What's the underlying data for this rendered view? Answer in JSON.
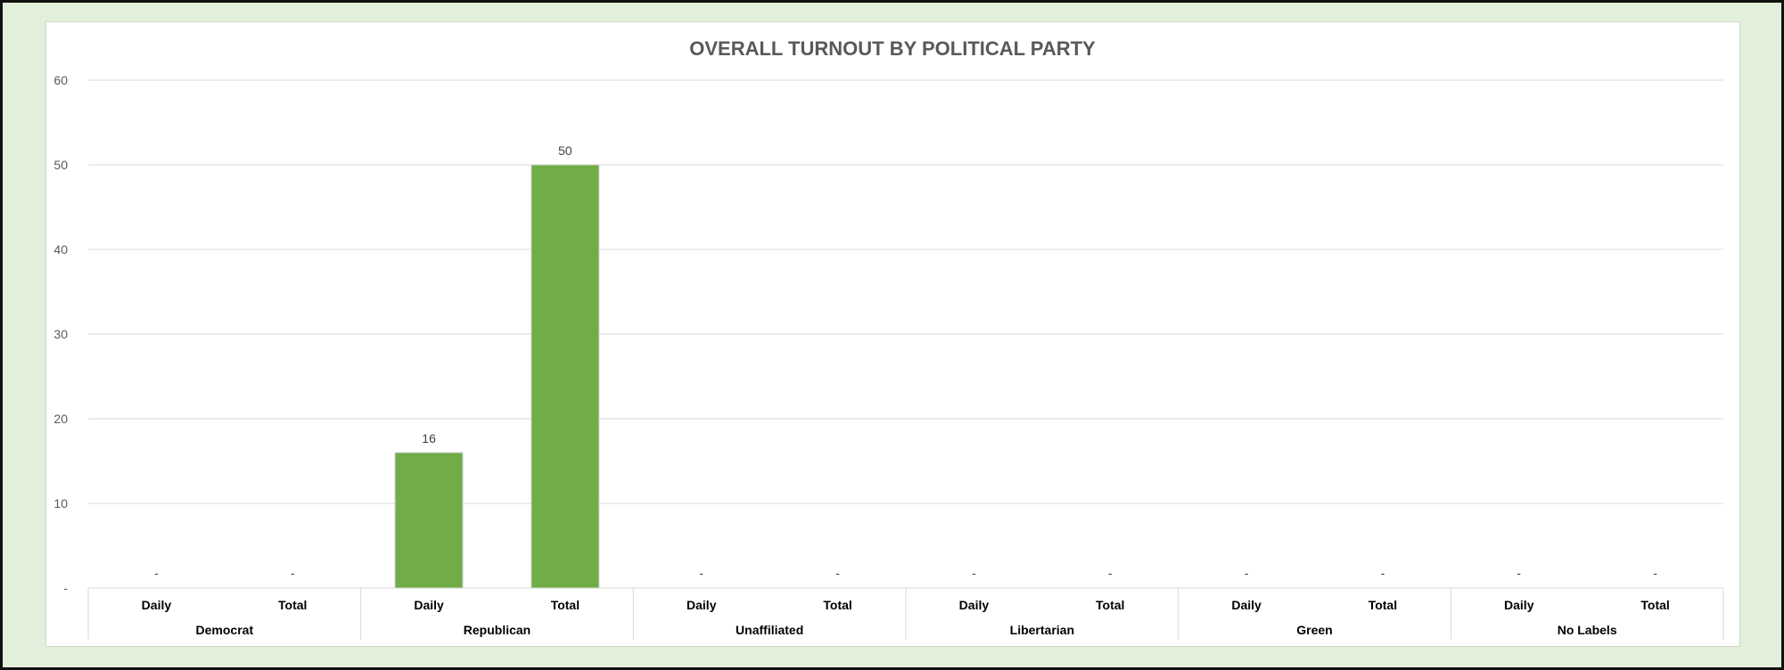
{
  "chart_data": {
    "type": "bar",
    "title": "OVERALL TURNOUT BY POLITICAL PARTY",
    "xlabel": "",
    "ylabel": "",
    "ylim": [
      0,
      60
    ],
    "y_ticks": [
      "-",
      "10",
      "20",
      "30",
      "40",
      "50",
      "60"
    ],
    "grid": true,
    "legend": "none",
    "groups": [
      "Democrat",
      "Republican",
      "Unaffiliated",
      "Libertarian",
      "Green",
      "No Labels"
    ],
    "subcategories": [
      "Daily",
      "Total"
    ],
    "values": [
      [
        0,
        0
      ],
      [
        16,
        50
      ],
      [
        0,
        0
      ],
      [
        0,
        0
      ],
      [
        0,
        0
      ],
      [
        0,
        0
      ]
    ],
    "data_labels": [
      [
        "-",
        "-"
      ],
      [
        "16",
        "50"
      ],
      [
        "-",
        "-"
      ],
      [
        "-",
        "-"
      ],
      [
        "-",
        "-"
      ],
      [
        "-",
        "-"
      ]
    ],
    "bar_color": "#70ad47",
    "background_color": "#e2efda"
  }
}
